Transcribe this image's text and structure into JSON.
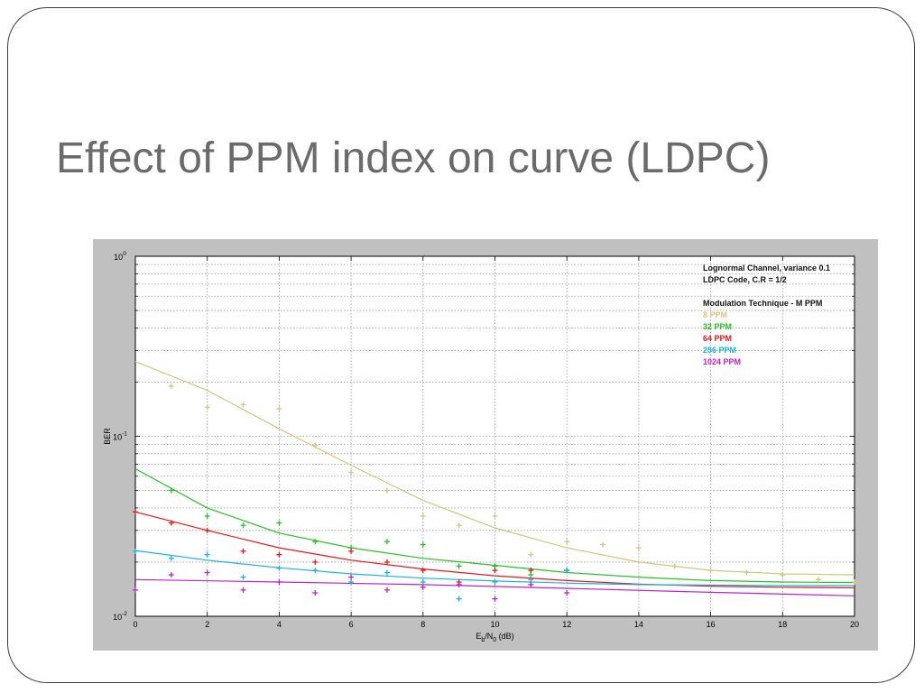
{
  "slide": {
    "title": "Effect of PPM index on curve (LDPC)"
  },
  "chart_data": {
    "type": "line",
    "x_label": {
      "main": "E",
      "sub1": "b",
      "slash": "/N",
      "sub2": "0",
      "unit": " (dB)"
    },
    "ylabel": "BER",
    "xlim": [
      0,
      20
    ],
    "ylim": [
      0.01,
      1
    ],
    "yscale": "log",
    "grid": true,
    "x_ticks": [
      0,
      2,
      4,
      6,
      8,
      10,
      12,
      14,
      16,
      18,
      20
    ],
    "y_ticks": [
      {
        "value": 1,
        "base": "10",
        "exp": "0"
      },
      {
        "value": 0.1,
        "base": "10",
        "exp": "-1"
      },
      {
        "value": 0.01,
        "base": "10",
        "exp": "-2"
      }
    ],
    "legend": {
      "placement": "top-right",
      "header_lines": [
        "Lognormal Channel, variance 0.1",
        "LDPC Code, C.R = 1/2",
        "",
        "Modulation Technique - M PPM"
      ]
    },
    "series": [
      {
        "name": "8 PPM",
        "color": "#d2c77a",
        "points": [
          [
            1,
            0.19
          ],
          [
            2,
            0.145
          ],
          [
            3,
            0.15
          ],
          [
            4,
            0.142
          ],
          [
            5,
            0.089
          ],
          [
            6,
            0.063
          ],
          [
            7,
            0.05
          ],
          [
            8,
            0.036
          ],
          [
            9,
            0.032
          ],
          [
            10,
            0.036
          ],
          [
            11,
            0.022
          ],
          [
            12,
            0.026
          ],
          [
            13,
            0.025
          ],
          [
            14,
            0.024
          ],
          [
            15,
            0.019
          ],
          [
            16,
            0.018
          ],
          [
            17,
            0.0175
          ],
          [
            18,
            0.017
          ],
          [
            19,
            0.016
          ],
          [
            20,
            0.0155
          ]
        ],
        "fit": [
          [
            0,
            0.26
          ],
          [
            2,
            0.18
          ],
          [
            4,
            0.11
          ],
          [
            6,
            0.069
          ],
          [
            8,
            0.044
          ],
          [
            10,
            0.031
          ],
          [
            12,
            0.024
          ],
          [
            14,
            0.02
          ],
          [
            16,
            0.018
          ],
          [
            18,
            0.0172
          ],
          [
            20,
            0.017
          ]
        ]
      },
      {
        "name": "32 PPM",
        "color": "#22c422",
        "points": [
          [
            1,
            0.05
          ],
          [
            2,
            0.036
          ],
          [
            3,
            0.032
          ],
          [
            4,
            0.033
          ],
          [
            5,
            0.026
          ],
          [
            6,
            0.024
          ],
          [
            7,
            0.026
          ],
          [
            8,
            0.025
          ],
          [
            9,
            0.019
          ],
          [
            10,
            0.019
          ],
          [
            11,
            0.017
          ],
          [
            12,
            0.018
          ]
        ],
        "fit": [
          [
            0,
            0.066
          ],
          [
            2,
            0.04
          ],
          [
            4,
            0.029
          ],
          [
            6,
            0.024
          ],
          [
            8,
            0.021
          ],
          [
            10,
            0.0192
          ],
          [
            12,
            0.0175
          ],
          [
            14,
            0.0165
          ],
          [
            16,
            0.0158
          ],
          [
            18,
            0.0155
          ],
          [
            20,
            0.0154
          ]
        ]
      },
      {
        "name": "64 PPM",
        "color": "#e81818",
        "points": [
          [
            0,
            0.038
          ],
          [
            1,
            0.033
          ],
          [
            2,
            0.03
          ],
          [
            3,
            0.023
          ],
          [
            4,
            0.022
          ],
          [
            5,
            0.02
          ],
          [
            6,
            0.023
          ],
          [
            7,
            0.02
          ],
          [
            8,
            0.018
          ],
          [
            9,
            0.0155
          ],
          [
            10,
            0.018
          ],
          [
            11,
            0.018
          ],
          [
            12,
            0.018
          ]
        ],
        "fit": [
          [
            0,
            0.038
          ],
          [
            2,
            0.03
          ],
          [
            4,
            0.024
          ],
          [
            6,
            0.0205
          ],
          [
            8,
            0.0183
          ],
          [
            10,
            0.0168
          ],
          [
            12,
            0.0158
          ],
          [
            14,
            0.0151
          ],
          [
            16,
            0.0147
          ],
          [
            18,
            0.0145
          ],
          [
            20,
            0.0144
          ]
        ]
      },
      {
        "name": "256 PPM",
        "color": "#18b4e0",
        "points": [
          [
            0,
            0.023
          ],
          [
            1,
            0.021
          ],
          [
            2,
            0.022
          ],
          [
            3,
            0.0165
          ],
          [
            4,
            0.0185
          ],
          [
            5,
            0.018
          ],
          [
            6,
            0.0155
          ],
          [
            7,
            0.0175
          ],
          [
            8,
            0.0155
          ],
          [
            9,
            0.0125
          ],
          [
            10,
            0.0155
          ],
          [
            11,
            0.016
          ],
          [
            12,
            0.018
          ]
        ],
        "fit": [
          [
            0,
            0.0232
          ],
          [
            2,
            0.0205
          ],
          [
            4,
            0.0186
          ],
          [
            6,
            0.0172
          ],
          [
            8,
            0.0163
          ],
          [
            10,
            0.0157
          ],
          [
            12,
            0.0153
          ],
          [
            14,
            0.015
          ],
          [
            16,
            0.0149
          ],
          [
            18,
            0.0148
          ],
          [
            20,
            0.0148
          ]
        ]
      },
      {
        "name": "1024 PPM",
        "color": "#c020c8",
        "points": [
          [
            0,
            0.014
          ],
          [
            1,
            0.017
          ],
          [
            2,
            0.0175
          ],
          [
            3,
            0.014
          ],
          [
            4,
            0.0155
          ],
          [
            5,
            0.0135
          ],
          [
            6,
            0.0165
          ],
          [
            7,
            0.014
          ],
          [
            8,
            0.0145
          ],
          [
            9,
            0.015
          ],
          [
            10,
            0.0125
          ],
          [
            11,
            0.015
          ],
          [
            12,
            0.0135
          ]
        ],
        "fit": [
          [
            0,
            0.016
          ],
          [
            4,
            0.0155
          ],
          [
            8,
            0.015
          ],
          [
            12,
            0.0143
          ],
          [
            16,
            0.0136
          ],
          [
            20,
            0.013
          ]
        ]
      }
    ]
  }
}
